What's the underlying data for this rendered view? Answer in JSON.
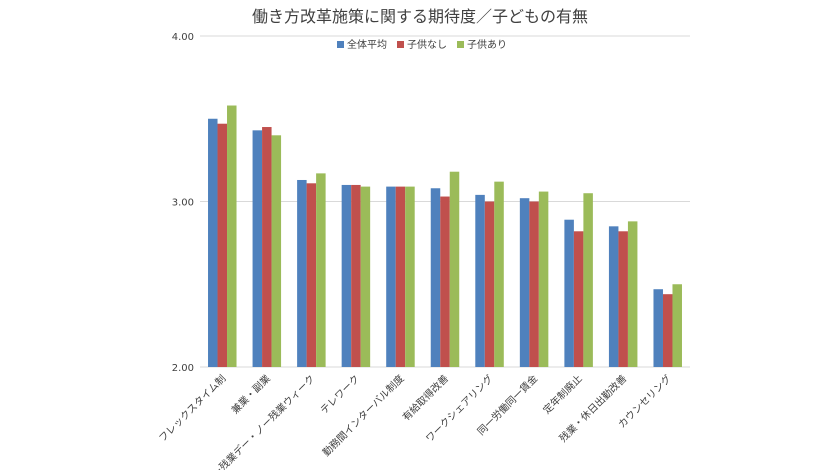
{
  "chart_data": {
    "type": "bar",
    "title": "働き方改革施策に関する期待度／子どもの有無",
    "xlabel": "",
    "ylabel": "",
    "ylim": [
      2.0,
      4.0
    ],
    "yticks": [
      "2.00",
      "3.00",
      "4.00"
    ],
    "ytick_values": [
      2.0,
      3.0,
      4.0
    ],
    "grid": true,
    "legend_position": "top",
    "categories": [
      "フレックスタイム制",
      "兼業・副業",
      "ノー残業デー・ノー残業ウィーク",
      "テレワーク",
      "勤務間インターバル制度",
      "有給取得改善",
      "ワークシェアリング",
      "同一労働同一賃金",
      "定年制廃止",
      "残業・休日出勤改善",
      "カウンセリング"
    ],
    "series": [
      {
        "name": "全体平均",
        "color": "#4f81bd",
        "values": [
          3.5,
          3.43,
          3.13,
          3.1,
          3.09,
          3.08,
          3.04,
          3.02,
          2.89,
          2.85,
          2.47
        ]
      },
      {
        "name": "子供なし",
        "color": "#c0504d",
        "values": [
          3.47,
          3.45,
          3.11,
          3.1,
          3.09,
          3.03,
          3.0,
          3.0,
          2.82,
          2.82,
          2.44
        ]
      },
      {
        "name": "子供あり",
        "color": "#9bbb59",
        "values": [
          3.58,
          3.4,
          3.17,
          3.09,
          3.09,
          3.18,
          3.12,
          3.06,
          3.05,
          2.88,
          2.5
        ]
      }
    ]
  },
  "colors": {
    "axis_text": "#404040",
    "grid": "#d9d9d9",
    "faded_label": "#a6a6a6"
  }
}
